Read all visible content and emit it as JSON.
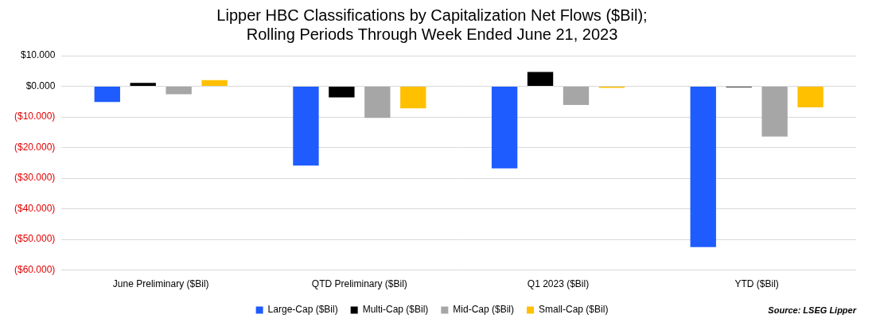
{
  "chart_data": {
    "type": "bar",
    "title": [
      "Lipper HBC Classifications by Capitalization Net Flows ($Bil);",
      "Rolling Periods Through Week Ended June 21, 2023"
    ],
    "source": "Source: LSEG Lipper",
    "categories": [
      "June Preliminary ($Bil)",
      "QTD Preliminary ($Bil)",
      "Q1 2023 ($Bil)",
      "YTD ($Bil)"
    ],
    "series": [
      {
        "name": "Large-Cap ($Bil)",
        "color": "#1f5cff",
        "values": [
          -5.1,
          -25.9,
          -26.8,
          -52.5
        ]
      },
      {
        "name": "Multi-Cap ($Bil)",
        "color": "#000000",
        "values": [
          1.1,
          -3.6,
          4.7,
          -0.3
        ]
      },
      {
        "name": "Mid-Cap ($Bil)",
        "color": "#a6a6a6",
        "values": [
          -2.6,
          -10.3,
          -6.1,
          -16.4
        ]
      },
      {
        "name": "Small-Cap ($Bil)",
        "color": "#ffc000",
        "values": [
          2.0,
          -7.2,
          -0.5,
          -6.9
        ]
      }
    ],
    "ylim": [
      -60,
      10
    ],
    "yticks": [
      {
        "value": 10,
        "label": "$10.000"
      },
      {
        "value": 0,
        "label": "$0.000"
      },
      {
        "value": -10,
        "label": "($10.000)"
      },
      {
        "value": -20,
        "label": "($20.000)"
      },
      {
        "value": -30,
        "label": "($30.000)"
      },
      {
        "value": -40,
        "label": "($40.000)"
      },
      {
        "value": -50,
        "label": "($50.000)"
      },
      {
        "value": -60,
        "label": "($60.000)"
      }
    ],
    "grid": true,
    "legend": "bottom"
  }
}
